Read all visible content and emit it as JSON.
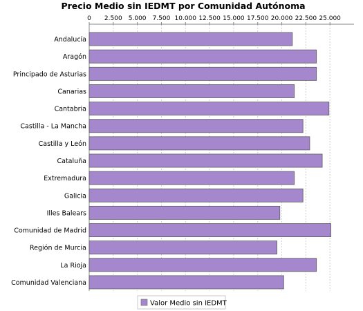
{
  "chart_data": {
    "type": "bar",
    "orientation": "horizontal",
    "title": "Precio Medio sin IEDMT por Comunidad Autónoma",
    "xlabel": "",
    "ylabel": "",
    "xlim": [
      0,
      27500
    ],
    "x_ticks": [
      0,
      2500,
      5000,
      7500,
      10000,
      12500,
      15000,
      17500,
      20000,
      22500,
      25000
    ],
    "x_tick_labels": [
      "0",
      "2.500",
      "5.000",
      "7.500",
      "10.000",
      "12.500",
      "15.000",
      "17.500",
      "20.000",
      "22.500",
      "25.000"
    ],
    "tick_position": "top",
    "grid": true,
    "legend_position": "bottom-center",
    "bar_color": "#a487cc",
    "categories": [
      "Andalucía",
      "Aragón",
      "Principado de Asturias",
      "Canarias",
      "Cantabria",
      "Castilla - La Mancha",
      "Castilla y León",
      "Cataluña",
      "Extremadura",
      "Galicia",
      "Illes Balears",
      "Comunidad de Madrid",
      "Región de Murcia",
      "La Rioja",
      "Comunidad Valenciana"
    ],
    "series": [
      {
        "name": "Valor Medio sin IEDMT",
        "values": [
          21100,
          23600,
          23600,
          21300,
          24900,
          22200,
          22900,
          24200,
          21300,
          22200,
          19800,
          25100,
          19500,
          23600,
          20200
        ]
      }
    ]
  }
}
